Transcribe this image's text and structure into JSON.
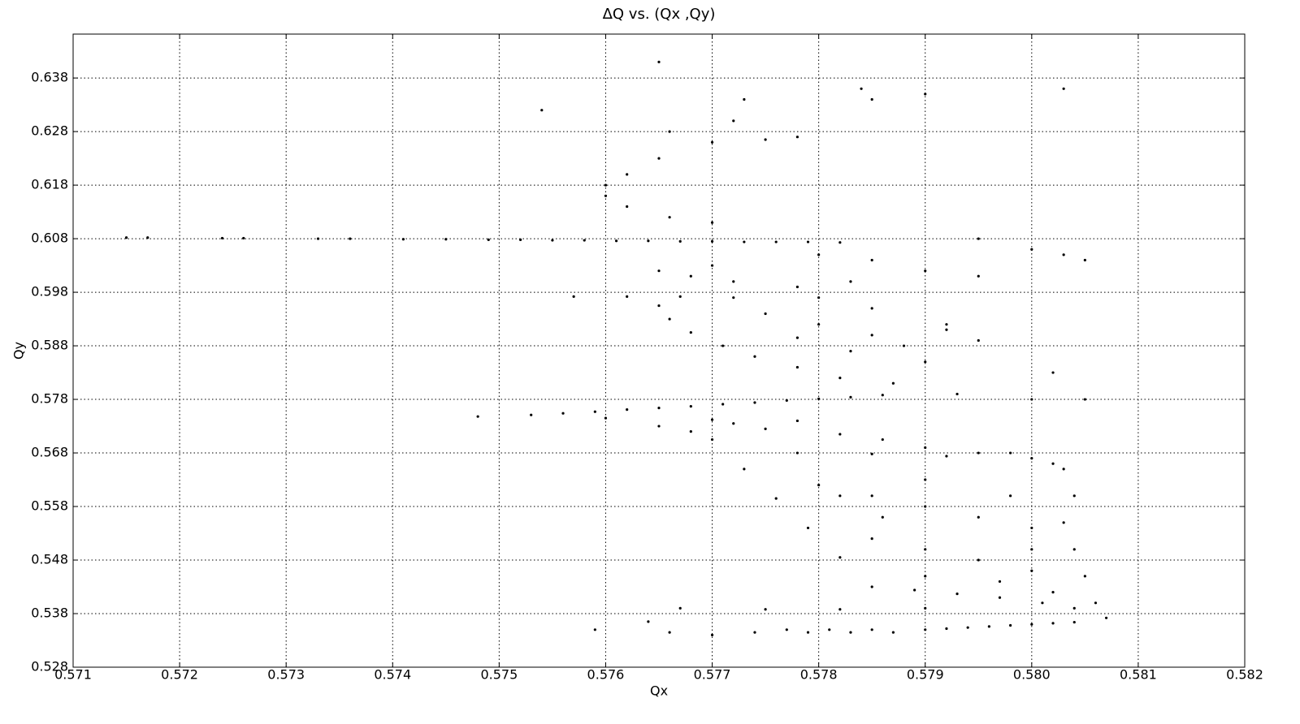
{
  "chart_data": {
    "type": "scatter",
    "title": "ΔQ vs. (Qx ,Qy)",
    "x_label": "Qx",
    "y_label": "Qy",
    "color": "#000000",
    "grid": true,
    "xlim": [
      0.571,
      0.582
    ],
    "xticks": [
      0.571,
      0.572,
      0.573,
      0.574,
      0.575,
      0.576,
      0.577,
      0.578,
      0.579,
      {
        "value": 0.58,
        "label": "0.580"
      },
      0.581,
      0.582
    ],
    "ylim": [
      0.528,
      0.6462
    ],
    "yticks": [
      0.528,
      0.538,
      0.548,
      0.558,
      0.568,
      0.578,
      0.588,
      0.598,
      0.608,
      0.618,
      0.628,
      0.638
    ],
    "x": [
      0.5715,
      0.5717,
      0.5724,
      0.5726,
      0.5733,
      0.5736,
      0.5741,
      0.5745,
      0.5749,
      0.5752,
      0.5755,
      0.5758,
      0.5761,
      0.5764,
      0.5767,
      0.577,
      0.5773,
      0.5776,
      0.5779,
      0.5782,
      0.5748,
      0.5753,
      0.5756,
      0.5759,
      0.5762,
      0.5765,
      0.5768,
      0.5771,
      0.5774,
      0.5777,
      0.578,
      0.5783,
      0.5786,
      0.577,
      0.5773,
      0.5776,
      0.5779,
      0.5782,
      0.5785,
      0.5789,
      0.5793,
      0.5797,
      0.5801,
      0.5804,
      0.5807,
      0.5806,
      0.5805,
      0.5804,
      0.5803,
      0.5804,
      0.578,
      0.5785,
      0.579,
      0.5795,
      0.58,
      0.579,
      0.5795,
      0.58,
      0.579,
      0.5797,
      0.5785,
      0.5782,
      0.579,
      0.5798,
      0.58,
      0.5802,
      0.5786,
      0.5778,
      0.5785,
      0.5792,
      0.5798,
      0.5802,
      0.5765,
      0.5768,
      0.5772,
      0.5775,
      0.5778,
      0.5782,
      0.5786,
      0.579,
      0.5795,
      0.58,
      0.5803,
      0.576,
      0.577,
      0.5765,
      0.5766,
      0.5768,
      0.5771,
      0.5774,
      0.5778,
      0.5782,
      0.5787,
      0.5775,
      0.578,
      0.5785,
      0.5778,
      0.5783,
      0.579,
      0.5788,
      0.5792,
      0.5795,
      0.5785,
      0.578,
      0.5772,
      0.5757,
      0.5762,
      0.5767,
      0.5765,
      0.5768,
      0.5772,
      0.577,
      0.578,
      0.5785,
      0.579,
      0.5795,
      0.58,
      0.5805,
      0.5783,
      0.5778,
      0.5762,
      0.576,
      0.576,
      0.5762,
      0.5766,
      0.577,
      0.5765,
      0.577,
      0.5775,
      0.5778,
      0.5766,
      0.5772,
      0.5765,
      0.5754,
      0.5784,
      0.5803,
      0.579,
      0.5785,
      0.5773,
      0.5795,
      0.5792,
      0.5802,
      0.58,
      0.5805,
      0.5803,
      0.5793,
      0.5767,
      0.5775,
      0.5782,
      0.579,
      0.5777,
      0.5779,
      0.5781,
      0.5783,
      0.5785,
      0.5787,
      0.579,
      0.5792,
      0.5794,
      0.5796,
      0.5798,
      0.58,
      0.5802,
      0.5804,
      0.5766,
      0.577,
      0.5774,
      0.5759,
      0.5764
    ],
    "values": [
      0.6082,
      0.6082,
      0.6081,
      0.6081,
      0.608,
      0.608,
      0.6079,
      0.6079,
      0.6078,
      0.6078,
      0.6077,
      0.6077,
      0.6076,
      0.6076,
      0.6075,
      0.6075,
      0.6074,
      0.6074,
      0.6074,
      0.6073,
      0.5748,
      0.5751,
      0.5754,
      0.5757,
      0.5761,
      0.5764,
      0.5767,
      0.5771,
      0.5774,
      0.5778,
      0.5781,
      0.5784,
      0.5788,
      0.5705,
      0.565,
      0.5595,
      0.554,
      0.5485,
      0.543,
      0.5424,
      0.5417,
      0.541,
      0.54,
      0.539,
      0.5372,
      0.54,
      0.545,
      0.55,
      0.555,
      0.56,
      0.562,
      0.56,
      0.558,
      0.556,
      0.554,
      0.55,
      0.548,
      0.546,
      0.545,
      0.544,
      0.552,
      0.56,
      0.563,
      0.56,
      0.55,
      0.542,
      0.556,
      0.568,
      0.5678,
      0.5674,
      0.568,
      0.566,
      0.573,
      0.572,
      0.5735,
      0.5725,
      0.574,
      0.5715,
      0.5705,
      0.569,
      0.568,
      0.567,
      0.565,
      0.5745,
      0.5742,
      0.5955,
      0.593,
      0.5905,
      0.588,
      0.586,
      0.584,
      0.582,
      0.581,
      0.594,
      0.592,
      0.59,
      0.5895,
      0.587,
      0.585,
      0.588,
      0.591,
      0.589,
      0.595,
      0.597,
      0.597,
      0.5972,
      0.5972,
      0.5972,
      0.602,
      0.601,
      0.6,
      0.603,
      0.605,
      0.604,
      0.602,
      0.601,
      0.606,
      0.604,
      0.6,
      0.599,
      0.62,
      0.618,
      0.616,
      0.614,
      0.612,
      0.611,
      0.623,
      0.626,
      0.6265,
      0.627,
      0.628,
      0.63,
      0.641,
      0.632,
      0.636,
      0.636,
      0.635,
      0.634,
      0.634,
      0.608,
      0.592,
      0.583,
      0.578,
      0.578,
      0.605,
      0.579,
      0.539,
      0.5388,
      0.5388,
      0.539,
      0.535,
      0.5345,
      0.535,
      0.5345,
      0.535,
      0.5345,
      0.535,
      0.5352,
      0.5354,
      0.5356,
      0.5358,
      0.536,
      0.5362,
      0.5364,
      0.5345,
      0.534,
      0.5345,
      0.535,
      0.5365
    ]
  }
}
